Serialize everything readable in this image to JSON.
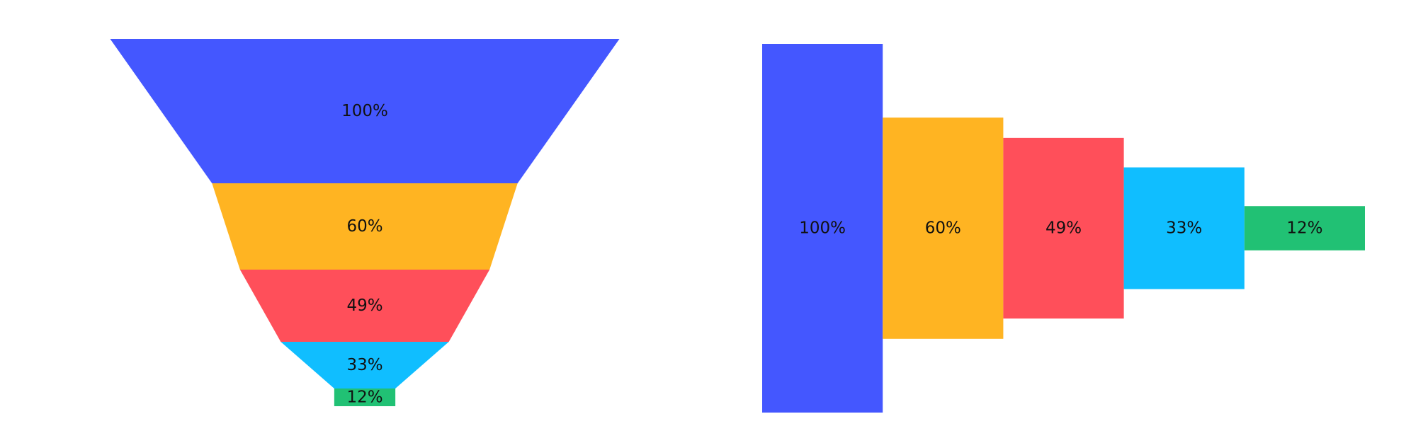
{
  "chart_data": [
    {
      "type": "funnel",
      "orientation": "vertical",
      "values": [
        100,
        60,
        49,
        33,
        12
      ],
      "labels": [
        "100%",
        "60%",
        "49%",
        "33%",
        "12%"
      ],
      "colors": [
        "#4457FF",
        "#FFB422",
        "#FF4F5A",
        "#10BEFF",
        "#21C174"
      ]
    },
    {
      "type": "bar",
      "orientation": "horizontal-funnel",
      "values": [
        100,
        60,
        49,
        33,
        12
      ],
      "labels": [
        "100%",
        "60%",
        "49%",
        "33%",
        "12%"
      ],
      "colors": [
        "#4457FF",
        "#FFB422",
        "#FF4F5A",
        "#10BEFF",
        "#21C174"
      ]
    }
  ]
}
